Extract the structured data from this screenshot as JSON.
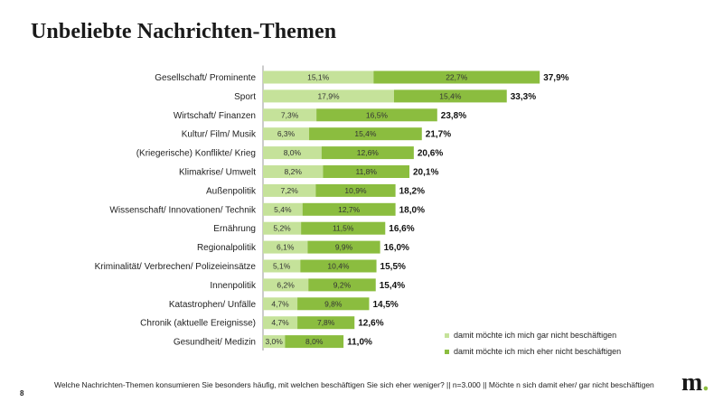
{
  "page": {
    "title": "Unbeliebte Nachrichten-Themen",
    "footnote": "Welche Nachrichten-Themen konsumieren Sie besonders häufig, mit welchen beschäftigen Sie sich eher weniger? || n=3.000 || Möchte n sich damit eher/ gar nicht beschäftigen",
    "page_number": "8",
    "logo_text": "m",
    "logo_dot": "."
  },
  "chart_data": {
    "type": "bar",
    "orientation": "horizontal",
    "stacked": true,
    "title": "Unbeliebte Nachrichten-Themen",
    "categories": [
      "Gesellschaft/ Prominente",
      "Sport",
      "Wirtschaft/ Finanzen",
      "Kultur/ Film/ Musik",
      "(Kriegerische) Konflikte/ Krieg",
      "Klimakrise/ Umwelt",
      "Außenpolitik",
      "Wissenschaft/ Innovationen/ Technik",
      "Ernährung",
      "Regionalpolitik",
      "Kriminalität/ Verbrechen/ Polizeieinsätze",
      "Innenpolitik",
      "Katastrophen/ Unfälle",
      "Chronik (aktuelle Ereignisse)",
      "Gesundheit/ Medizin"
    ],
    "series": [
      {
        "name": "damit möchte ich mich gar nicht beschäftigen",
        "color": "#c5e29a",
        "values": [
          15.1,
          17.9,
          7.3,
          6.3,
          8.0,
          8.2,
          7.2,
          5.4,
          5.2,
          6.1,
          5.1,
          6.2,
          4.7,
          4.7,
          3.0
        ],
        "labels": [
          "15,1%",
          "17,9%",
          "7,3%",
          "6,3%",
          "8,0%",
          "8,2%",
          "7,2%",
          "5,4%",
          "5,2%",
          "6,1%",
          "5,1%",
          "6,2%",
          "4,7%",
          "4,7%",
          "3,0%"
        ]
      },
      {
        "name": "damit möchte ich mich eher nicht beschäftigen",
        "color": "#8bbd3f",
        "values": [
          22.7,
          15.4,
          16.5,
          15.4,
          12.6,
          11.8,
          10.9,
          12.7,
          11.5,
          9.9,
          10.4,
          9.2,
          9.8,
          7.8,
          8.0
        ],
        "labels": [
          "22,7%",
          "15,4%",
          "16,5%",
          "15,4%",
          "12,6%",
          "11,8%",
          "10,9%",
          "12,7%",
          "11,5%",
          "9,9%",
          "10,4%",
          "9,2%",
          "9,8%",
          "7,8%",
          "8,0%"
        ]
      }
    ],
    "totals": [
      37.9,
      33.3,
      23.8,
      21.7,
      20.6,
      20.1,
      18.2,
      18.0,
      16.6,
      16.0,
      15.5,
      15.4,
      14.5,
      12.6,
      11.0
    ],
    "total_labels": [
      "37,9%",
      "33,3%",
      "23,8%",
      "21,7%",
      "20,6%",
      "20,1%",
      "18,2%",
      "18,0%",
      "16,6%",
      "16,0%",
      "15,5%",
      "15,4%",
      "14,5%",
      "12,6%",
      "11,0%"
    ],
    "xlim": [
      0,
      40
    ],
    "xlabel": "",
    "ylabel": "",
    "grid": false,
    "legend_position": "bottom-right"
  }
}
